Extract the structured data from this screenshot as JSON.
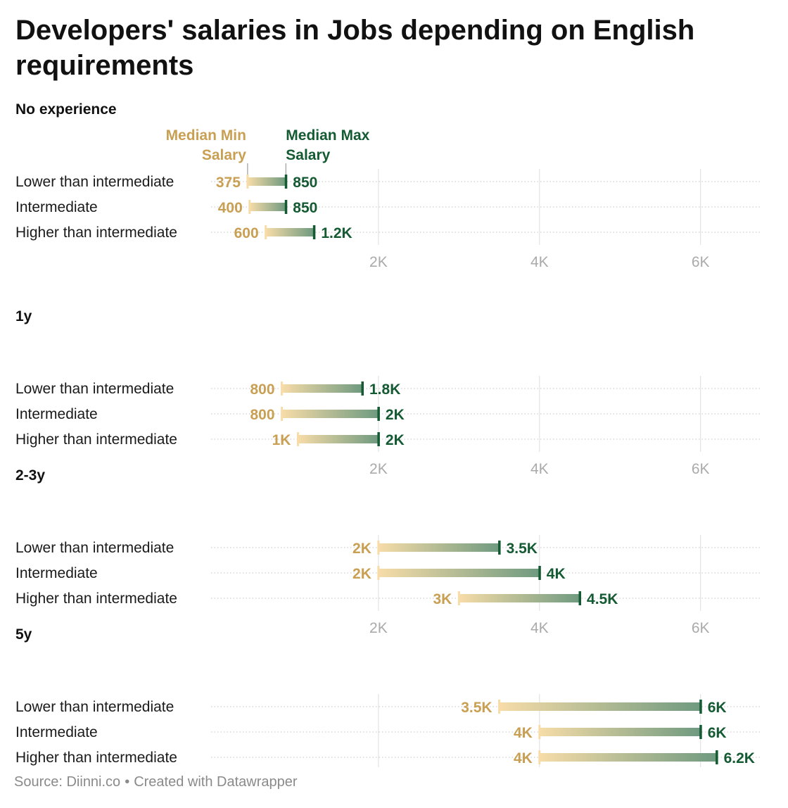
{
  "title": "Developers' salaries in Jobs depending on English requirements",
  "footer": {
    "source": "Source: Diinni.co",
    "credit": "Created with Datawrapper"
  },
  "colors": {
    "min": "#c9a053",
    "min_light": "#f7dca8",
    "max": "#145a32",
    "max_light": "#6f9a80",
    "grid": "#dddddd",
    "tick": "#aaaaaa",
    "text": "#1a1a1a"
  },
  "chart_data": {
    "type": "range-bar",
    "legend": {
      "min": "Median Min Salary",
      "max": "Median Max Salary"
    },
    "x_ticks": [
      {
        "value": 2000,
        "label": "2K"
      },
      {
        "value": 4000,
        "label": "4K"
      },
      {
        "value": 6000,
        "label": "6K"
      }
    ],
    "panels": [
      {
        "title": "No experience",
        "rows": [
          {
            "label": "Lower than intermediate",
            "min": 375,
            "max": 850,
            "min_label": "375",
            "max_label": "850"
          },
          {
            "label": "Intermediate",
            "min": 400,
            "max": 850,
            "min_label": "400",
            "max_label": "850"
          },
          {
            "label": "Higher than intermediate",
            "min": 600,
            "max": 1200,
            "min_label": "600",
            "max_label": "1.2K"
          }
        ]
      },
      {
        "title": "1y",
        "rows": [
          {
            "label": "Lower than intermediate",
            "min": 800,
            "max": 1800,
            "min_label": "800",
            "max_label": "1.8K"
          },
          {
            "label": "Intermediate",
            "min": 800,
            "max": 2000,
            "min_label": "800",
            "max_label": "2K"
          },
          {
            "label": "Higher than intermediate",
            "min": 1000,
            "max": 2000,
            "min_label": "1K",
            "max_label": "2K"
          }
        ]
      },
      {
        "title": "2-3y",
        "rows": [
          {
            "label": "Lower than intermediate",
            "min": 2000,
            "max": 3500,
            "min_label": "2K",
            "max_label": "3.5K"
          },
          {
            "label": "Intermediate",
            "min": 2000,
            "max": 4000,
            "min_label": "2K",
            "max_label": "4K"
          },
          {
            "label": "Higher than intermediate",
            "min": 3000,
            "max": 4500,
            "min_label": "3K",
            "max_label": "4.5K"
          }
        ]
      },
      {
        "title": "5y",
        "rows": [
          {
            "label": "Lower than intermediate",
            "min": 3500,
            "max": 6000,
            "min_label": "3.5K",
            "max_label": "6K"
          },
          {
            "label": "Intermediate",
            "min": 4000,
            "max": 6000,
            "min_label": "4K",
            "max_label": "6K"
          },
          {
            "label": "Higher than intermediate",
            "min": 4000,
            "max": 6200,
            "min_label": "4K",
            "max_label": "6.2K"
          }
        ]
      }
    ]
  }
}
